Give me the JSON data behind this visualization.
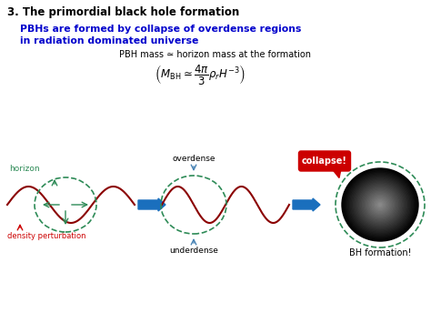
{
  "title": "3. The primordial black hole formation",
  "subtitle_line1": "PBHs are formed by collapse of overdense regions",
  "subtitle_line2": "in radiation dominated universe",
  "subtitle_color": "#0000cc",
  "formula_text": "PBH mass ≃ horizon mass at the formation",
  "label_horizon": "horizon",
  "label_density": "density perturbation",
  "label_overdense": "overdense",
  "label_underdense": "underdense",
  "label_collapse": "collapse!",
  "label_bh": "BH formation!",
  "bg_color": "#ffffff",
  "wave_color": "#8b0000",
  "circle_color": "#2e8b57",
  "arrow_color": "#1a6fbd",
  "horizon_label_color": "#2e8b57",
  "density_label_color": "#cc0000",
  "collapse_bg_color": "#cc0000",
  "collapse_text_color": "#ffffff"
}
